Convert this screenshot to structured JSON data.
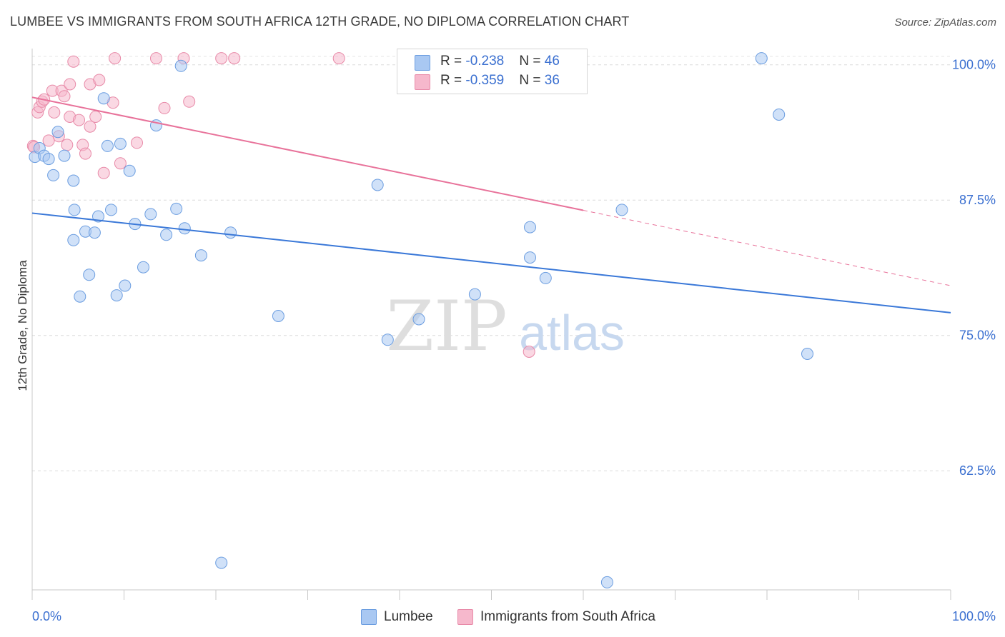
{
  "header": {
    "title": "LUMBEE VS IMMIGRANTS FROM SOUTH AFRICA 12TH GRADE, NO DIPLOMA CORRELATION CHART",
    "source": "Source: ZipAtlas.com"
  },
  "watermark": {
    "zip": "ZIP",
    "atlas": "atlas"
  },
  "legend": {
    "rows": [
      {
        "r_label": "R = ",
        "r_value": "-0.238",
        "n_label": "N = ",
        "n_value": "46",
        "color": "#a9c8f2",
        "edge": "#6b9de0"
      },
      {
        "r_label": "R = ",
        "r_value": "-0.359",
        "n_label": "N = ",
        "n_value": "36",
        "color": "#f6b8cc",
        "edge": "#e88aa8"
      }
    ]
  },
  "bottom_legend": [
    {
      "label": "Lumbee",
      "color": "#a9c8f2"
    },
    {
      "label": "Immigrants from South Africa",
      "color": "#f6b8cc"
    }
  ],
  "chart_data": {
    "type": "scatter",
    "title": "LUMBEE VS IMMIGRANTS FROM SOUTH AFRICA 12TH GRADE, NO DIPLOMA CORRELATION CHART",
    "xlabel": "",
    "ylabel": "12th Grade, No Diploma",
    "xlim": [
      0,
      100
    ],
    "ylim": [
      51.5,
      101.5
    ],
    "x_tick_labels": [
      "0.0%",
      "100.0%"
    ],
    "y_ticks": [
      100.0,
      87.5,
      75.0,
      62.5
    ],
    "y_tick_labels": [
      "100.0%",
      "87.5%",
      "75.0%",
      "62.5%"
    ],
    "grid": true,
    "colors": {
      "blue": "#3a78d8",
      "pink": "#e8729a",
      "tick_label": "#3a6fd0"
    },
    "series": [
      {
        "name": "Lumbee",
        "color": "#a9c8f2",
        "edge": "#6b9de0",
        "trend": {
          "x": [
            0,
            100
          ],
          "y": [
            86.3,
            77.1
          ],
          "dashed_from": null
        },
        "points": [
          [
            0.3,
            91.5
          ],
          [
            0.8,
            92.3
          ],
          [
            1.3,
            91.6
          ],
          [
            1.8,
            91.3
          ],
          [
            2.3,
            89.8
          ],
          [
            2.8,
            93.8
          ],
          [
            3.5,
            91.6
          ],
          [
            4.5,
            83.8
          ],
          [
            4.5,
            89.3
          ],
          [
            4.6,
            86.6
          ],
          [
            5.2,
            78.6
          ],
          [
            5.8,
            84.6
          ],
          [
            6.2,
            80.6
          ],
          [
            6.8,
            84.5
          ],
          [
            7.2,
            86.0
          ],
          [
            7.8,
            96.9
          ],
          [
            8.2,
            92.5
          ],
          [
            8.6,
            86.6
          ],
          [
            9.2,
            78.7
          ],
          [
            9.6,
            92.7
          ],
          [
            10.1,
            79.6
          ],
          [
            10.6,
            90.2
          ],
          [
            11.2,
            85.3
          ],
          [
            12.1,
            81.3
          ],
          [
            12.9,
            86.2
          ],
          [
            13.5,
            94.4
          ],
          [
            14.6,
            84.3
          ],
          [
            15.7,
            86.7
          ],
          [
            16.2,
            99.9
          ],
          [
            16.6,
            84.9
          ],
          [
            18.4,
            82.4
          ],
          [
            20.6,
            54.0
          ],
          [
            21.6,
            84.5
          ],
          [
            26.8,
            76.8
          ],
          [
            37.6,
            88.9
          ],
          [
            38.7,
            74.6
          ],
          [
            42.1,
            76.5
          ],
          [
            48.2,
            78.8
          ],
          [
            54.2,
            85.0
          ],
          [
            54.2,
            82.2
          ],
          [
            55.9,
            80.3
          ],
          [
            62.6,
            52.2
          ],
          [
            64.2,
            86.6
          ],
          [
            79.4,
            100.6
          ],
          [
            81.3,
            95.4
          ],
          [
            84.4,
            73.3
          ]
        ]
      },
      {
        "name": "Immigrants from South Africa",
        "color": "#f6b8cc",
        "edge": "#e88aa8",
        "trend": {
          "x": [
            0,
            100
          ],
          "y": [
            97.0,
            79.6
          ],
          "dashed_from": 60
        },
        "points": [
          [
            0.1,
            92.5
          ],
          [
            0.6,
            95.6
          ],
          [
            0.8,
            96.1
          ],
          [
            1.1,
            96.6
          ],
          [
            1.3,
            96.8
          ],
          [
            1.8,
            93.0
          ],
          [
            2.2,
            97.6
          ],
          [
            2.4,
            95.6
          ],
          [
            2.9,
            93.4
          ],
          [
            3.2,
            97.6
          ],
          [
            3.5,
            97.1
          ],
          [
            3.8,
            92.6
          ],
          [
            4.1,
            98.2
          ],
          [
            4.1,
            95.2
          ],
          [
            4.5,
            100.3
          ],
          [
            5.1,
            94.9
          ],
          [
            5.5,
            92.6
          ],
          [
            5.8,
            91.8
          ],
          [
            6.3,
            98.2
          ],
          [
            6.3,
            94.3
          ],
          [
            6.9,
            95.2
          ],
          [
            7.3,
            98.6
          ],
          [
            7.8,
            90.0
          ],
          [
            8.8,
            96.5
          ],
          [
            9.0,
            100.6
          ],
          [
            9.6,
            90.9
          ],
          [
            11.4,
            92.8
          ],
          [
            13.5,
            100.6
          ],
          [
            14.4,
            96.0
          ],
          [
            16.5,
            100.6
          ],
          [
            17.1,
            96.6
          ],
          [
            20.6,
            100.6
          ],
          [
            22.0,
            100.6
          ],
          [
            33.4,
            100.6
          ],
          [
            54.1,
            73.5
          ],
          [
            0.2,
            92.4
          ]
        ]
      }
    ]
  }
}
